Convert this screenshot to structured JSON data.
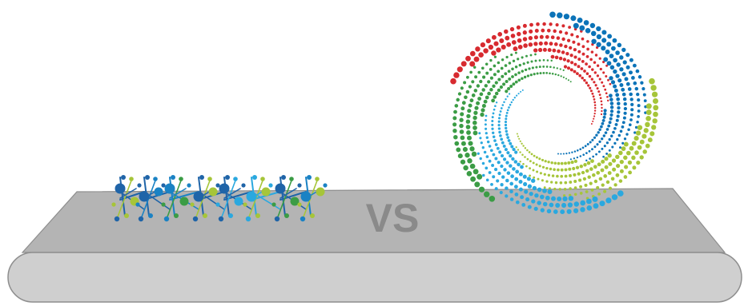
{
  "center_label": "VS",
  "colors": {
    "belt_top": "#b4b4b4",
    "belt_front": "#cfcfcf",
    "belt_edge": "#8e8e8e",
    "vs_text": "#8a8a8a",
    "dark_blue": "#1f64a8",
    "mid_blue": "#1a82c4",
    "light_blue": "#2aa8df",
    "lime": "#a6c539",
    "green": "#3b9c45",
    "red": "#d72a2f",
    "spiral_blue": "#0b73b8"
  },
  "left_graphic": {
    "icon": "molecule-chain-icon"
  },
  "right_graphic": {
    "icon": "dotted-spiral-icon"
  }
}
